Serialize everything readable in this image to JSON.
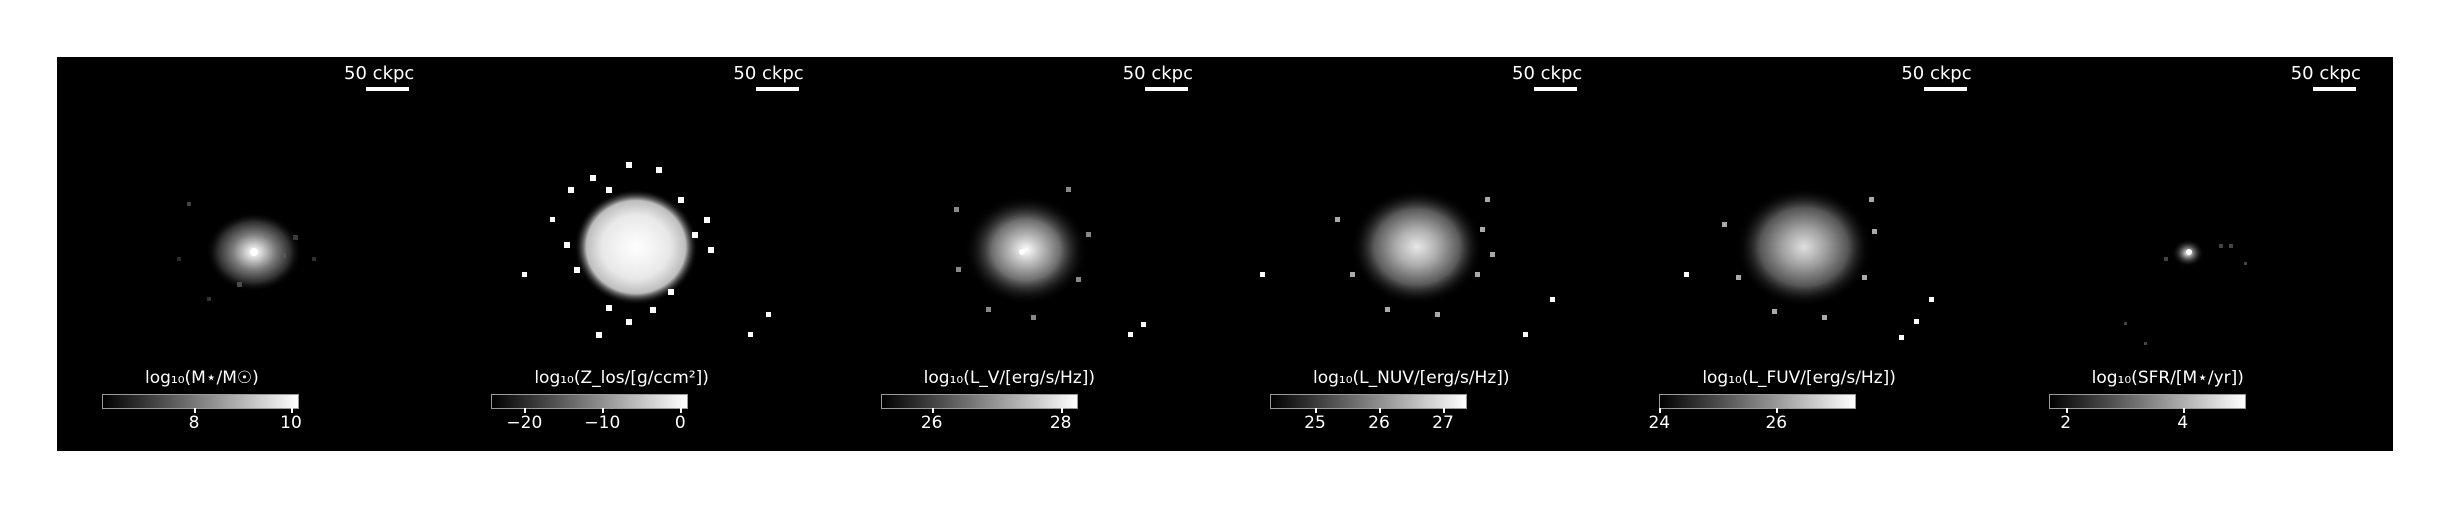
{
  "scale_bar_label": "50 ckpc",
  "panels": [
    {
      "id": "stellar-mass",
      "cbar_title": "log₁₀(M⋆/M☉)",
      "ticks": [
        {
          "label": "8",
          "pos": 0.47
        },
        {
          "label": "10",
          "pos": 0.97
        }
      ]
    },
    {
      "id": "metallicity",
      "cbar_title": "log₁₀(Z_los/[g/ccm²])",
      "ticks": [
        {
          "label": "−20",
          "pos": 0.17
        },
        {
          "label": "−10",
          "pos": 0.57
        },
        {
          "label": "0",
          "pos": 0.97
        }
      ]
    },
    {
      "id": "lum-v",
      "cbar_title": "log₁₀(L_V/[erg/s/Hz])",
      "ticks": [
        {
          "label": "26",
          "pos": 0.26
        },
        {
          "label": "28",
          "pos": 0.92
        }
      ]
    },
    {
      "id": "lum-nuv",
      "cbar_title": "log₁₀(L_NUV/[erg/s/Hz])",
      "ticks": [
        {
          "label": "25",
          "pos": 0.23
        },
        {
          "label": "26",
          "pos": 0.56
        },
        {
          "label": "27",
          "pos": 0.89
        }
      ]
    },
    {
      "id": "lum-fuv",
      "cbar_title": "log₁₀(L_FUV/[erg/s/Hz])",
      "ticks": [
        {
          "label": "24",
          "pos": 0.0
        },
        {
          "label": "26",
          "pos": 0.6
        }
      ]
    },
    {
      "id": "sfr",
      "cbar_title": "log₁₀(SFR/[M⋆/yr])",
      "ticks": [
        {
          "label": "2",
          "pos": 0.09
        },
        {
          "label": "4",
          "pos": 0.69
        }
      ]
    }
  ]
}
